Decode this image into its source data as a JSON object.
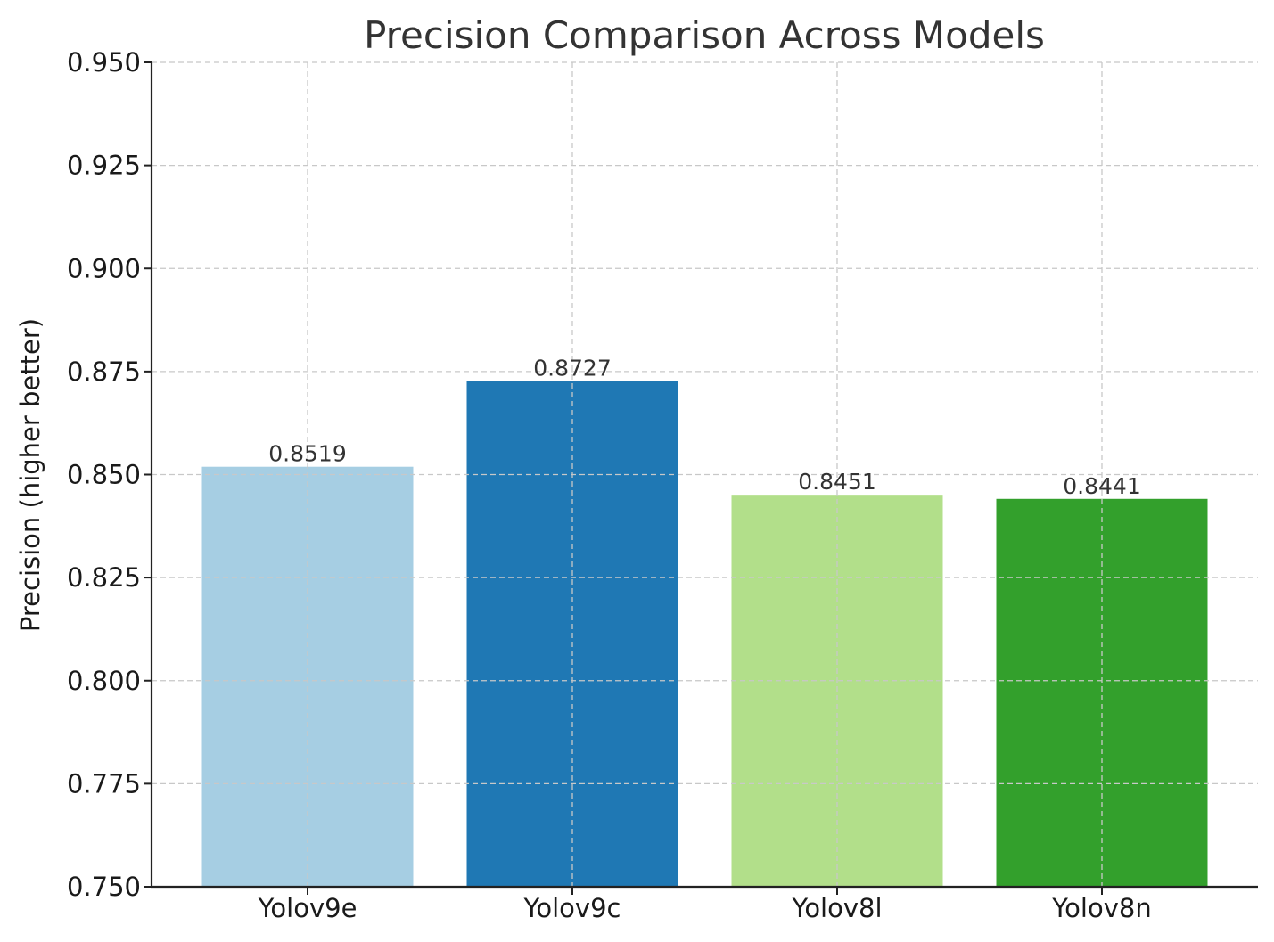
{
  "chart_data": {
    "type": "bar",
    "title": "Precision Comparison Across Models",
    "xlabel": "",
    "ylabel": "Precision (higher better)",
    "categories": [
      "Yolov9e",
      "Yolov9c",
      "Yolov8l",
      "Yolov8n"
    ],
    "values": [
      0.8519,
      0.8727,
      0.8451,
      0.8441
    ],
    "value_labels": [
      "0.8519",
      "0.8727",
      "0.8451",
      "0.8441"
    ],
    "colors": [
      "#a6cee3",
      "#1f78b4",
      "#b2df8a",
      "#33a02c"
    ],
    "ylim": [
      0.75,
      0.95
    ],
    "yticks": [
      0.75,
      0.775,
      0.8,
      0.825,
      0.85,
      0.875,
      0.9,
      0.925,
      0.95
    ],
    "ytick_labels": [
      "0.750",
      "0.775",
      "0.800",
      "0.825",
      "0.850",
      "0.875",
      "0.900",
      "0.925",
      "0.950"
    ],
    "grid": true,
    "legend": "none"
  }
}
